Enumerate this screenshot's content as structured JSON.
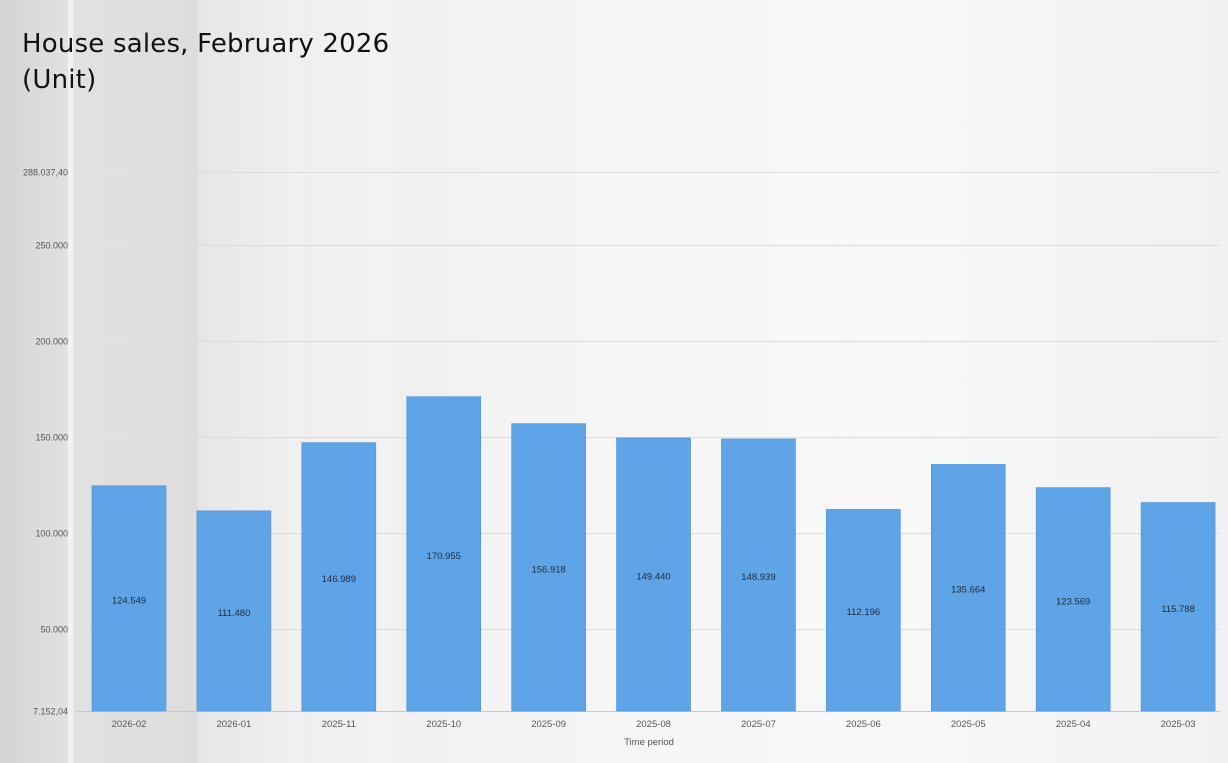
{
  "title_line1": "House sales, February 2026",
  "title_line2": "(Unit)",
  "chart_data": {
    "type": "bar",
    "title": "House sales, February 2026",
    "subtitle": "(Unit)",
    "xlabel": "Time period",
    "ylabel": "",
    "categories": [
      "2026-02",
      "2026-01",
      "2025-11",
      "2025-10",
      "2025-09",
      "2025-08",
      "2025-07",
      "2025-06",
      "2025-05",
      "2025-04",
      "2025-03"
    ],
    "values": [
      124549,
      111480,
      146989,
      170955,
      156918,
      149440,
      148939,
      112196,
      135664,
      123569,
      115788
    ],
    "value_labels": [
      "124.549",
      "111.480",
      "146.989",
      "170.955",
      "156.918",
      "149.440",
      "148.939",
      "112.196",
      "135.664",
      "123.569",
      "115.788"
    ],
    "ylim": [
      7152.04,
      288037.4
    ],
    "yticks": [
      7152.04,
      50000,
      100000,
      150000,
      200000,
      250000,
      288037.4
    ],
    "ytick_labels": [
      "7.152,04",
      "50.000",
      "100.000",
      "150.000",
      "200.000",
      "250.000",
      "288.037,40"
    ],
    "grid": true,
    "bar_color": "#5fa4e6",
    "bar_edge_color": "#4a90d9"
  }
}
